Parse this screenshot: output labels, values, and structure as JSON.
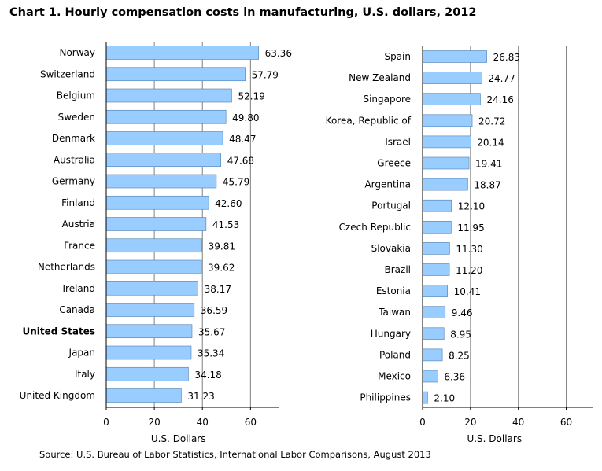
{
  "title": "Chart 1. Hourly compensation costs in manufacturing, U.S. dollars, 2012",
  "source": "Source: U.S. Bureau of Labor Statistics, International Labor Comparisons, August 2013",
  "colors": {
    "bar_fill": "#99ccff",
    "bar_stroke": "#4a7fb0",
    "grid": "#7f7f7f",
    "axis": "#000000"
  },
  "chart_data": [
    {
      "type": "bar",
      "orientation": "horizontal",
      "categories": [
        "Norway",
        "Switzerland",
        "Belgium",
        "Sweden",
        "Denmark",
        "Australia",
        "Germany",
        "Finland",
        "Austria",
        "France",
        "Netherlands",
        "Ireland",
        "Canada",
        "United States",
        "Japan",
        "Italy",
        "United Kingdom"
      ],
      "values": [
        63.36,
        57.79,
        52.19,
        49.8,
        48.47,
        47.68,
        45.79,
        42.6,
        41.53,
        39.81,
        39.62,
        38.17,
        36.59,
        35.67,
        35.34,
        34.18,
        31.23
      ],
      "value_labels": [
        "63.36",
        "57.79",
        "52.19",
        "49.80",
        "48.47",
        "47.68",
        "45.79",
        "42.60",
        "41.53",
        "39.81",
        "39.62",
        "38.17",
        "36.59",
        "35.67",
        "35.34",
        "34.18",
        "31.23"
      ],
      "highlight": "United States",
      "xlabel": "U.S. Dollars",
      "xlim": [
        0,
        72
      ],
      "xticks": [
        0,
        20,
        40,
        60
      ],
      "grid": true
    },
    {
      "type": "bar",
      "orientation": "horizontal",
      "categories": [
        "Spain",
        "New Zealand",
        "Singapore",
        "Korea, Republic of",
        "Israel",
        "Greece",
        "Argentina",
        "Portugal",
        "Czech Republic",
        "Slovakia",
        "Brazil",
        "Estonia",
        "Taiwan",
        "Hungary",
        "Poland",
        "Mexico",
        "Philippines"
      ],
      "values": [
        26.83,
        24.77,
        24.16,
        20.72,
        20.14,
        19.41,
        18.87,
        12.1,
        11.95,
        11.3,
        11.2,
        10.41,
        9.46,
        8.95,
        8.25,
        6.36,
        2.1
      ],
      "value_labels": [
        "26.83",
        "24.77",
        "24.16",
        "20.72",
        "20.14",
        "19.41",
        "18.87",
        "12.10",
        "11.95",
        "11.30",
        "11.20",
        "10.41",
        "9.46",
        "8.95",
        "8.25",
        "6.36",
        "2.10"
      ],
      "xlabel": "U.S. Dollars",
      "xlim": [
        0,
        71
      ],
      "xticks": [
        0,
        20,
        40,
        60
      ],
      "grid": true
    }
  ]
}
